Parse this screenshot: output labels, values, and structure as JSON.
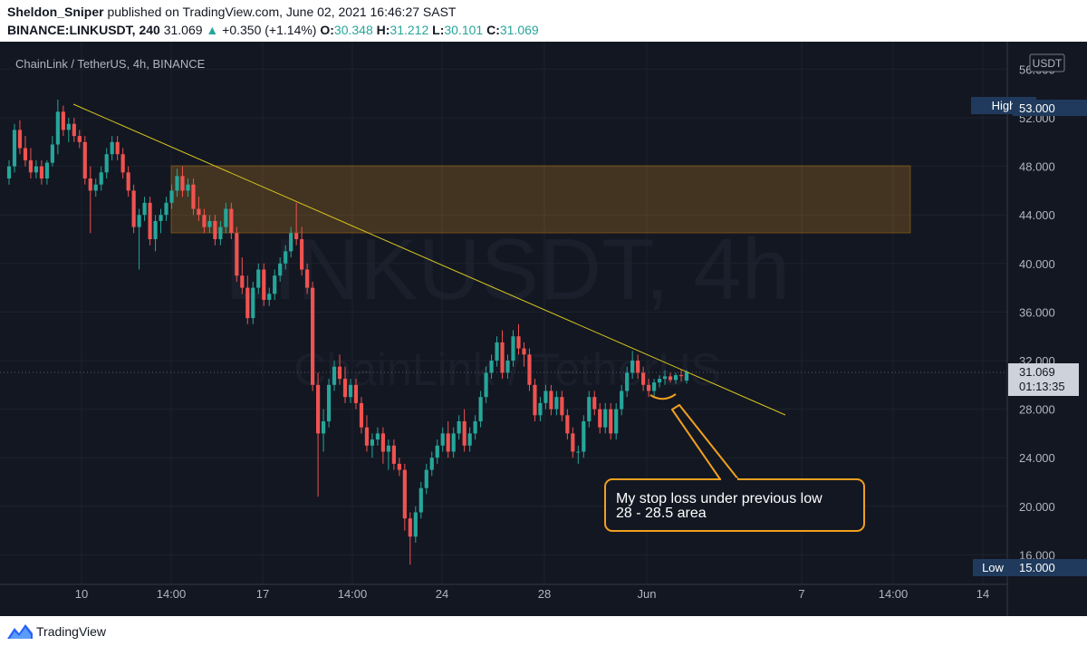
{
  "header": {
    "author": "Sheldon_Sniper",
    "published_text": "published on TradingView.com, June 02, 2021 16:46:27 SAST",
    "symbol": "BINANCE:LINKUSDT,",
    "interval": "240",
    "last": "31.069",
    "arrow": "▲",
    "change": "+0.350 (+1.14%)",
    "o_label": "O:",
    "o_val": "30.348",
    "h_label": "H:",
    "h_val": "31.212",
    "l_label": "L:",
    "l_val": "30.101",
    "c_label": "C:",
    "c_val": "31.069"
  },
  "chart": {
    "legend_text": "ChainLink / TetherUS, 4h, BINANCE",
    "watermark_big": "LINKUSDT, 4h",
    "watermark_small": "ChainLink / TetherUS",
    "currency_label": "USDT",
    "high_label": "High",
    "high_value": "53.000",
    "low_label": "Low",
    "low_value": "15.000",
    "price_label": "31.069",
    "countdown": "01:13:35",
    "annotation_line1": "My stop loss under previous low",
    "annotation_line2": "28 - 28.5 area",
    "colors": {
      "up": "#26a69a",
      "down": "#ef5350",
      "bg": "#131722",
      "zone": "#f0a020",
      "callout": "#f0a020"
    }
  },
  "chart_data": {
    "type": "candlestick",
    "title": "ChainLink / TetherUS, 4h, BINANCE",
    "y_ticks": [
      "56.000",
      "52.000",
      "48.000",
      "44.000",
      "40.000",
      "36.000",
      "32.000",
      "28.000",
      "24.000",
      "20.000",
      "16.000"
    ],
    "ylim": [
      14.5,
      58
    ],
    "x_ticks": [
      "10",
      "14:00",
      "17",
      "14:00",
      "24",
      "28",
      "Jun",
      "7",
      "14:00",
      "14"
    ],
    "series": [
      {
        "ohlc": [
          [
            47.0,
            48.5,
            46.5,
            48.0
          ],
          [
            48.0,
            51.5,
            47.5,
            51.0
          ],
          [
            51.0,
            51.8,
            49.0,
            49.5
          ],
          [
            49.5,
            50.5,
            48.0,
            48.5
          ],
          [
            48.5,
            49.5,
            47.0,
            47.5
          ],
          [
            47.5,
            48.5,
            47.0,
            48.0
          ],
          [
            48.0,
            48.5,
            46.5,
            47.0
          ],
          [
            47.0,
            48.5,
            46.5,
            48.3
          ],
          [
            48.3,
            50.5,
            48.0,
            49.8
          ],
          [
            49.8,
            53.5,
            49.0,
            52.5
          ],
          [
            52.5,
            53.0,
            50.5,
            51.0
          ],
          [
            51.0,
            52.0,
            50.0,
            51.5
          ],
          [
            51.5,
            52.0,
            50.0,
            50.5
          ],
          [
            50.5,
            51.0,
            49.5,
            50.0
          ],
          [
            50.0,
            50.5,
            46.5,
            47.0
          ],
          [
            47.0,
            48.0,
            42.5,
            46.0
          ],
          [
            46.0,
            47.0,
            45.5,
            46.5
          ],
          [
            46.5,
            48.0,
            46.0,
            47.5
          ],
          [
            47.5,
            49.5,
            47.0,
            49.0
          ],
          [
            49.0,
            50.5,
            48.5,
            50.0
          ],
          [
            50.0,
            50.5,
            48.5,
            49.0
          ],
          [
            49.0,
            49.5,
            47.0,
            47.5
          ],
          [
            47.5,
            48.0,
            45.5,
            46.0
          ],
          [
            46.0,
            46.5,
            42.5,
            43.0
          ],
          [
            43.0,
            44.5,
            39.5,
            44.0
          ],
          [
            44.0,
            45.5,
            43.5,
            45.0
          ],
          [
            45.0,
            45.5,
            41.5,
            42.0
          ],
          [
            42.0,
            44.0,
            41.0,
            43.5
          ],
          [
            43.5,
            44.5,
            42.5,
            44.0
          ],
          [
            44.0,
            45.5,
            43.5,
            45.0
          ],
          [
            45.0,
            46.5,
            44.5,
            46.0
          ],
          [
            46.0,
            47.8,
            45.5,
            47.2
          ],
          [
            47.2,
            48.0,
            45.5,
            46.0
          ],
          [
            46.0,
            47.0,
            45.5,
            46.5
          ],
          [
            46.5,
            47.0,
            44.0,
            44.5
          ],
          [
            44.5,
            45.5,
            43.5,
            44.0
          ],
          [
            44.0,
            44.5,
            42.5,
            43.0
          ],
          [
            43.0,
            44.0,
            42.5,
            43.5
          ],
          [
            43.5,
            44.0,
            41.5,
            42.0
          ],
          [
            42.0,
            43.5,
            41.5,
            43.0
          ],
          [
            43.0,
            45.0,
            42.5,
            44.5
          ],
          [
            44.5,
            45.0,
            42.0,
            42.5
          ],
          [
            42.5,
            43.0,
            38.5,
            39.0
          ],
          [
            39.0,
            40.5,
            37.5,
            38.0
          ],
          [
            38.0,
            39.0,
            35.0,
            35.5
          ],
          [
            35.5,
            38.5,
            35.0,
            38.0
          ],
          [
            38.0,
            40.0,
            37.5,
            39.5
          ],
          [
            39.5,
            40.0,
            36.5,
            37.0
          ],
          [
            37.0,
            38.0,
            36.5,
            37.5
          ],
          [
            37.5,
            39.5,
            37.0,
            39.0
          ],
          [
            39.0,
            40.5,
            38.5,
            40.0
          ],
          [
            40.0,
            41.5,
            39.5,
            41.0
          ],
          [
            41.0,
            43.0,
            40.5,
            42.5
          ],
          [
            42.5,
            45.0,
            41.5,
            42.0
          ],
          [
            42.0,
            43.0,
            39.0,
            39.5
          ],
          [
            39.5,
            40.0,
            37.5,
            38.0
          ],
          [
            38.0,
            38.5,
            29.5,
            30.0
          ],
          [
            30.0,
            31.0,
            20.8,
            26.0
          ],
          [
            26.0,
            28.0,
            24.5,
            27.0
          ],
          [
            27.0,
            30.5,
            26.5,
            30.0
          ],
          [
            30.0,
            32.0,
            29.5,
            31.5
          ],
          [
            31.5,
            32.5,
            30.0,
            30.5
          ],
          [
            30.5,
            31.5,
            28.5,
            29.0
          ],
          [
            29.0,
            30.5,
            28.5,
            30.0
          ],
          [
            30.0,
            30.5,
            28.0,
            28.5
          ],
          [
            28.5,
            29.0,
            26.0,
            26.5
          ],
          [
            26.5,
            27.5,
            24.5,
            25.0
          ],
          [
            25.0,
            26.0,
            24.0,
            25.5
          ],
          [
            25.5,
            26.5,
            25.0,
            26.0
          ],
          [
            26.0,
            26.5,
            23.5,
            24.5
          ],
          [
            24.5,
            25.5,
            23.0,
            25.0
          ],
          [
            25.0,
            25.5,
            23.0,
            23.5
          ],
          [
            23.5,
            24.0,
            22.5,
            23.0
          ],
          [
            23.0,
            23.5,
            18.0,
            19.0
          ],
          [
            19.0,
            19.5,
            15.2,
            17.5
          ],
          [
            17.5,
            20.0,
            17.0,
            19.5
          ],
          [
            19.5,
            22.0,
            19.0,
            21.5
          ],
          [
            21.5,
            23.5,
            21.0,
            23.0
          ],
          [
            23.0,
            24.5,
            22.5,
            24.0
          ],
          [
            24.0,
            25.5,
            23.5,
            25.0
          ],
          [
            25.0,
            26.5,
            24.5,
            26.0
          ],
          [
            26.0,
            27.0,
            24.0,
            24.5
          ],
          [
            24.5,
            26.5,
            24.0,
            26.0
          ],
          [
            26.0,
            27.5,
            25.5,
            27.0
          ],
          [
            27.0,
            28.0,
            24.5,
            25.0
          ],
          [
            25.0,
            26.5,
            24.5,
            26.0
          ],
          [
            26.0,
            27.5,
            25.5,
            27.0
          ],
          [
            27.0,
            29.5,
            26.5,
            29.0
          ],
          [
            29.0,
            31.5,
            28.5,
            31.0
          ],
          [
            31.0,
            32.5,
            30.5,
            32.0
          ],
          [
            32.0,
            34.0,
            31.5,
            33.5
          ],
          [
            33.5,
            34.5,
            30.5,
            31.0
          ],
          [
            31.0,
            32.5,
            30.5,
            32.0
          ],
          [
            32.0,
            34.5,
            31.5,
            34.0
          ],
          [
            34.0,
            35.0,
            32.5,
            33.0
          ],
          [
            33.0,
            33.5,
            31.5,
            32.5
          ],
          [
            32.5,
            33.0,
            29.5,
            30.0
          ],
          [
            30.0,
            30.5,
            27.0,
            27.5
          ],
          [
            27.5,
            29.0,
            27.0,
            28.5
          ],
          [
            28.5,
            30.0,
            28.0,
            29.5
          ],
          [
            29.5,
            30.0,
            27.5,
            28.0
          ],
          [
            28.0,
            29.5,
            27.5,
            29.0
          ],
          [
            29.0,
            29.5,
            27.0,
            27.5
          ],
          [
            27.5,
            28.0,
            25.5,
            26.0
          ],
          [
            26.0,
            26.5,
            24.0,
            24.5
          ],
          [
            24.5,
            25.0,
            23.5,
            24.5
          ],
          [
            24.5,
            27.5,
            24.0,
            27.0
          ],
          [
            27.0,
            29.5,
            26.5,
            29.0
          ],
          [
            29.0,
            29.5,
            27.5,
            28.0
          ],
          [
            28.0,
            28.5,
            26.0,
            26.5
          ],
          [
            26.5,
            28.5,
            26.0,
            28.0
          ],
          [
            28.0,
            28.5,
            25.5,
            26.0
          ],
          [
            26.0,
            28.5,
            25.5,
            28.0
          ],
          [
            28.0,
            30.0,
            27.5,
            29.5
          ],
          [
            29.5,
            31.5,
            29.0,
            31.0
          ],
          [
            31.0,
            32.8,
            30.5,
            32.0
          ],
          [
            32.0,
            32.5,
            30.5,
            31.0
          ],
          [
            31.0,
            31.5,
            29.5,
            30.0
          ],
          [
            30.0,
            30.5,
            29.0,
            29.5
          ],
          [
            29.5,
            30.5,
            29.0,
            30.2
          ],
          [
            30.2,
            30.8,
            29.8,
            30.5
          ],
          [
            30.5,
            31.2,
            30.0,
            30.7
          ],
          [
            30.7,
            31.0,
            30.2,
            30.4
          ],
          [
            30.4,
            31.0,
            30.1,
            30.8
          ],
          [
            30.8,
            31.3,
            30.3,
            30.72
          ],
          [
            30.348,
            31.212,
            30.101,
            31.069
          ]
        ]
      }
    ],
    "annotation": "My stop loss under previous low\n28 - 28.5 area"
  }
}
